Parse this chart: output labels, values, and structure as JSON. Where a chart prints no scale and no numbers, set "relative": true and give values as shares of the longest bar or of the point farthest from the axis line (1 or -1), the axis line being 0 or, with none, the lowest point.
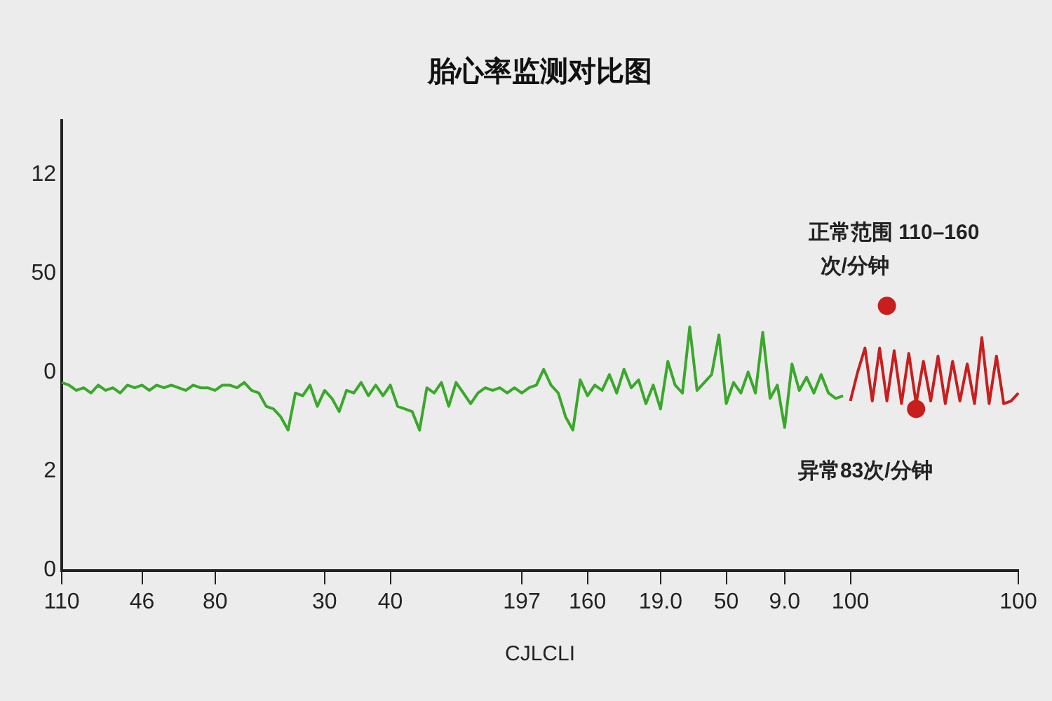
{
  "chart_data": {
    "type": "line",
    "title": "胎心率监测对比图",
    "xlabel": "CJLCLI",
    "relative": true,
    "categories": [
      "110",
      null,
      null,
      null,
      null,
      null,
      null,
      null,
      null,
      null,
      null,
      "46",
      null,
      null,
      null,
      null,
      null,
      null,
      null,
      null,
      null,
      "80",
      null,
      null,
      null,
      null,
      null,
      null,
      null,
      null,
      null,
      null,
      null,
      null,
      null,
      null,
      "30",
      null,
      null,
      null,
      null,
      null,
      null,
      null,
      null,
      "40",
      null,
      null,
      null,
      null,
      null,
      null,
      null,
      null,
      null,
      null,
      null,
      null,
      null,
      null,
      null,
      null,
      null,
      "197",
      null,
      null,
      null,
      null,
      null,
      null,
      null,
      null,
      "160",
      null,
      null,
      null,
      null,
      null,
      null,
      null,
      null,
      null,
      "19.0",
      null,
      null,
      null,
      null,
      null,
      null,
      null,
      null,
      "50",
      null,
      null,
      null,
      null,
      null,
      null,
      null,
      "9.0",
      null,
      null,
      null,
      null,
      null,
      null,
      null,
      null,
      "100",
      null,
      null,
      null,
      null,
      null,
      null,
      null,
      null,
      null,
      null,
      null,
      null,
      null,
      null,
      null,
      null,
      null,
      null,
      null,
      null,
      null,
      null,
      "100"
    ],
    "grid": false,
    "legend": false,
    "marker": "none",
    "line_style": "solid",
    "series": [
      {
        "color": "#3aa82a",
        "values": [
          0.71,
          0.7,
          0.68,
          0.69,
          0.67,
          0.7,
          0.68,
          0.69,
          0.67,
          0.7,
          0.69,
          0.7,
          0.68,
          0.7,
          0.69,
          0.7,
          0.69,
          0.68,
          0.7,
          0.69,
          0.69,
          0.68,
          0.7,
          0.7,
          0.69,
          0.71,
          0.68,
          0.67,
          0.62,
          0.61,
          0.58,
          0.53,
          0.67,
          0.66,
          0.7,
          0.62,
          0.68,
          0.65,
          0.6,
          0.68,
          0.67,
          0.71,
          0.66,
          0.7,
          0.66,
          0.7,
          0.62,
          0.61,
          0.6,
          0.53,
          0.69,
          0.67,
          0.71,
          0.62,
          0.71,
          0.67,
          0.63,
          0.67,
          0.69,
          0.68,
          0.69,
          0.67,
          0.69,
          0.67,
          0.69,
          0.7,
          0.76,
          0.7,
          0.67,
          0.58,
          0.53,
          0.72,
          0.66,
          0.7,
          0.68,
          0.74,
          0.67,
          0.76,
          0.69,
          0.72,
          0.63,
          0.7,
          0.61,
          0.79,
          0.7,
          0.67,
          0.92,
          0.68,
          0.71,
          0.74,
          0.89,
          0.63,
          0.71,
          0.67,
          0.75,
          0.67,
          0.9,
          0.65,
          0.7,
          0.54,
          0.78,
          0.68,
          0.73,
          0.67,
          0.74,
          0.67,
          0.65,
          0.66,
          null,
          null,
          null,
          null,
          null,
          null,
          null,
          null,
          null,
          null,
          null,
          null,
          null,
          null,
          null,
          null,
          null,
          null,
          null,
          null,
          null,
          null,
          null,
          null
        ]
      },
      {
        "color": "#c81e1e",
        "values": [
          null,
          null,
          null,
          null,
          null,
          null,
          null,
          null,
          null,
          null,
          null,
          null,
          null,
          null,
          null,
          null,
          null,
          null,
          null,
          null,
          null,
          null,
          null,
          null,
          null,
          null,
          null,
          null,
          null,
          null,
          null,
          null,
          null,
          null,
          null,
          null,
          null,
          null,
          null,
          null,
          null,
          null,
          null,
          null,
          null,
          null,
          null,
          null,
          null,
          null,
          null,
          null,
          null,
          null,
          null,
          null,
          null,
          null,
          null,
          null,
          null,
          null,
          null,
          null,
          null,
          null,
          null,
          null,
          null,
          null,
          null,
          null,
          null,
          null,
          null,
          null,
          null,
          null,
          null,
          null,
          null,
          null,
          null,
          null,
          null,
          null,
          null,
          null,
          null,
          null,
          null,
          null,
          null,
          null,
          null,
          null,
          null,
          null,
          null,
          null,
          null,
          null,
          null,
          null,
          null,
          null,
          null,
          null,
          0.64,
          0.75,
          0.84,
          0.64,
          0.84,
          0.64,
          0.83,
          0.63,
          0.82,
          0.63,
          0.79,
          0.64,
          0.81,
          0.63,
          0.79,
          0.64,
          0.78,
          0.63,
          0.88,
          0.63,
          0.81,
          0.63,
          0.64,
          0.67
        ]
      },
      {
        "type": "scatter",
        "marker": "circle",
        "color": "#c81e1e",
        "values": [
          null,
          null,
          null,
          null,
          null,
          null,
          null,
          null,
          null,
          null,
          null,
          null,
          null,
          null,
          null,
          null,
          null,
          null,
          null,
          null,
          null,
          null,
          null,
          null,
          null,
          null,
          null,
          null,
          null,
          null,
          null,
          null,
          null,
          null,
          null,
          null,
          null,
          null,
          null,
          null,
          null,
          null,
          null,
          null,
          null,
          null,
          null,
          null,
          null,
          null,
          null,
          null,
          null,
          null,
          null,
          null,
          null,
          null,
          null,
          null,
          null,
          null,
          null,
          null,
          null,
          null,
          null,
          null,
          null,
          null,
          null,
          null,
          null,
          null,
          null,
          null,
          null,
          null,
          null,
          null,
          null,
          null,
          null,
          null,
          null,
          null,
          null,
          null,
          null,
          null,
          null,
          null,
          null,
          null,
          null,
          null,
          null,
          null,
          null,
          null,
          null,
          null,
          null,
          null,
          null,
          null,
          null,
          null,
          null,
          null,
          null,
          null,
          null,
          1,
          null,
          null,
          null,
          0.61,
          null,
          null,
          null,
          null,
          null,
          null,
          null,
          null,
          null,
          null,
          null,
          null,
          null,
          null
        ]
      }
    ],
    "annotations": [
      "正常范围 110–160\n次/分钟",
      "异常83次/分钟",
      "12",
      "50",
      "0",
      "2",
      "0"
    ]
  }
}
